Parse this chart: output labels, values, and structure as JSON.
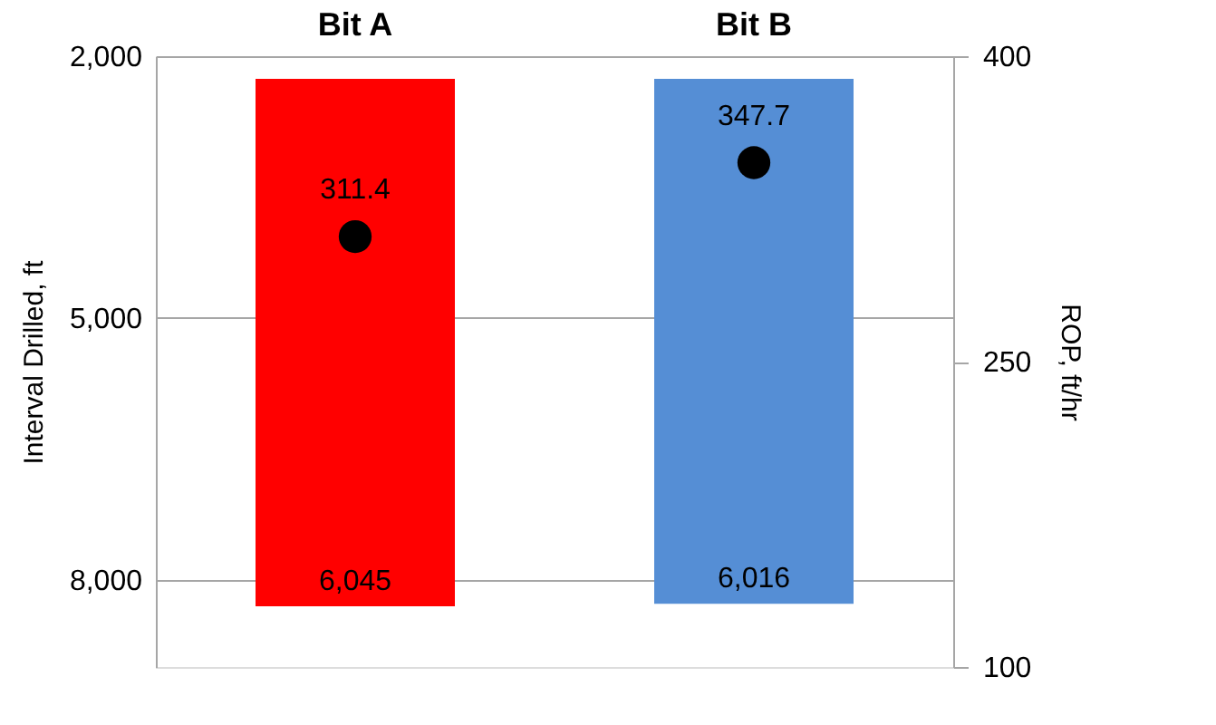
{
  "chart_data": {
    "type": "bar",
    "categories": [
      "Bit A",
      "Bit B"
    ],
    "ylabel": "Interval Drilled, ft",
    "y2label": "ROP, ft/hr",
    "ylim": [
      9000,
      2000
    ],
    "yticks": [
      {
        "value": 2000,
        "label": "2,000"
      },
      {
        "value": 5000,
        "label": "5,000"
      },
      {
        "value": 8000,
        "label": "8,000"
      }
    ],
    "y2lim": [
      100,
      400
    ],
    "y2ticks": [
      100,
      250,
      400
    ],
    "grid": "y",
    "series": [
      {
        "colors": [
          "#ff0000",
          "#558ed5"
        ],
        "values": [
          6045,
          6016
        ],
        "base": [
          2260,
          2260
        ],
        "value_labels": [
          "6,045",
          "6,016"
        ]
      },
      {
        "type": "scatter",
        "axis": "y2",
        "color": "#000000",
        "marker": "circle",
        "values": [
          311.4,
          347.7
        ],
        "data_labels": true
      }
    ]
  }
}
